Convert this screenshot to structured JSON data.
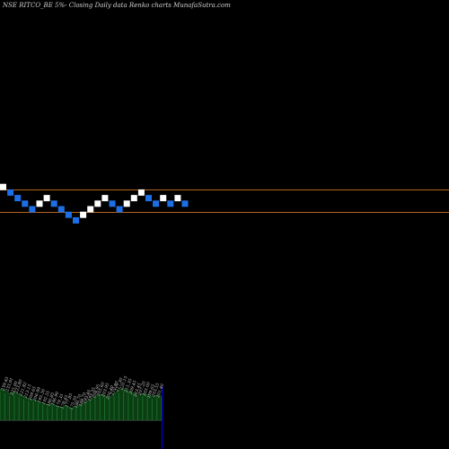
{
  "title": "NSE RITCO_BE 5%-  Closing Daily data  Renko  charts MunafaSutra.com",
  "colors": {
    "background": "#000000",
    "up_brick": "#ffffff",
    "down_brick": "#1e6fe6",
    "level_line": "#b5651d",
    "volume_fill": "#0a3d12",
    "volume_bar": "#1a6b2a",
    "volume_line": "#0000ff",
    "text": "#cfcfcf"
  },
  "chart_data": {
    "type": "renko",
    "title": "NSE RITCO_BE 5%-  Closing Daily data  Renko  charts MunafaSutra.com",
    "bricks": [
      {
        "dir": "up",
        "level": 4
      },
      {
        "dir": "down",
        "level": 3
      },
      {
        "dir": "down",
        "level": 2
      },
      {
        "dir": "down",
        "level": 1
      },
      {
        "dir": "down",
        "level": 0
      },
      {
        "dir": "up",
        "level": 1
      },
      {
        "dir": "up",
        "level": 2
      },
      {
        "dir": "down",
        "level": 1
      },
      {
        "dir": "down",
        "level": 0
      },
      {
        "dir": "down",
        "level": -1
      },
      {
        "dir": "down",
        "level": -2
      },
      {
        "dir": "up",
        "level": -1
      },
      {
        "dir": "up",
        "level": 0
      },
      {
        "dir": "up",
        "level": 1
      },
      {
        "dir": "up",
        "level": 2
      },
      {
        "dir": "down",
        "level": 1
      },
      {
        "dir": "down",
        "level": 0
      },
      {
        "dir": "up",
        "level": 1
      },
      {
        "dir": "up",
        "level": 2
      },
      {
        "dir": "up",
        "level": 3
      },
      {
        "dir": "down",
        "level": 2
      },
      {
        "dir": "down",
        "level": 1
      },
      {
        "dir": "up",
        "level": 2
      },
      {
        "dir": "down",
        "level": 1
      },
      {
        "dir": "up",
        "level": 2
      },
      {
        "dir": "down",
        "level": 1
      }
    ],
    "reference_levels": [
      3.5,
      -0.5
    ],
    "volume_labels": [
      "239.45",
      "233.91",
      "225.00",
      "223.80",
      "221.82",
      "213.15",
      "209.65",
      "206.99",
      "195.30",
      "192.55",
      "186.85",
      "186.90",
      "179.35",
      "178.45",
      "177.85",
      "175.50",
      "186.70",
      "188.70",
      "193.40",
      "195.35",
      "204.95",
      "205.60",
      "203.95",
      "200.40",
      "210.80",
      "217.30",
      "220.15",
      "215.35",
      "209.45",
      "203.45",
      "207.20",
      "205.00",
      "199.65",
      "203.55",
      "201.40"
    ],
    "volume_profile": [
      0.72,
      0.7,
      0.62,
      0.66,
      0.6,
      0.55,
      0.5,
      0.48,
      0.44,
      0.4,
      0.36,
      0.38,
      0.33,
      0.3,
      0.34,
      0.28,
      0.32,
      0.36,
      0.42,
      0.48,
      0.55,
      0.6,
      0.58,
      0.52,
      0.62,
      0.7,
      0.74,
      0.68,
      0.64,
      0.58,
      0.62,
      0.6,
      0.55,
      0.58,
      0.56
    ]
  }
}
